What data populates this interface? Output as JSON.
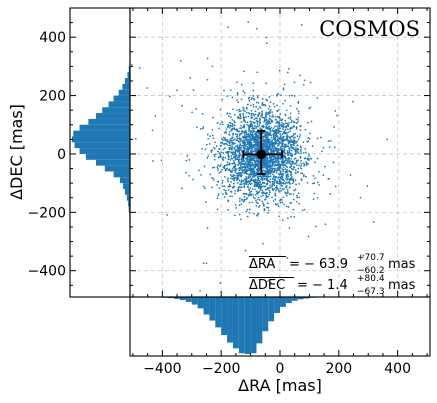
{
  "chart_data": {
    "type": "scatter",
    "title": "COSMOS",
    "xlabel": "ΔRA [mas]",
    "ylabel": "ΔDEC [mas]",
    "xlim": [
      -510,
      510
    ],
    "ylim": [
      -490,
      500
    ],
    "xticks": [
      -400,
      -200,
      0,
      200,
      400
    ],
    "yticks": [
      -400,
      -200,
      0,
      200,
      400
    ],
    "grid": true,
    "color": "#1f77b4",
    "point_color": "#1f77b4",
    "marker_color": "#000000",
    "mean": {
      "ra": -63.9,
      "dec": -1.4
    },
    "errorbar": {
      "ra_minus": 60.2,
      "ra_plus": 70.7,
      "dec_minus": 67.3,
      "dec_plus": 80.4
    },
    "n_points": 3000,
    "annotation_ra": {
      "label": "ΔRA",
      "value": "= − 63.9",
      "sup": "+70.7",
      "sub": "−60.2",
      "unit": "mas"
    },
    "annotation_dec": {
      "label": "ΔDEC",
      "value": "= − 1.4",
      "sup": "+80.4",
      "sub": "−67.3",
      "unit": "mas"
    },
    "hist_ra": {
      "bin_start": -440,
      "bin_width": 20,
      "counts": [
        1,
        1,
        2,
        3,
        5,
        8,
        13,
        20,
        30,
        46,
        62,
        80,
        100,
        120,
        135,
        148,
        150,
        148,
        122,
        90,
        64,
        42,
        26,
        16,
        10,
        6,
        4,
        2,
        1,
        1,
        0,
        0,
        0,
        0,
        0,
        0,
        0,
        0,
        0,
        0,
        0,
        0,
        0,
        0
      ]
    },
    "hist_dec": {
      "bin_start": -240,
      "bin_width": 20,
      "counts": [
        1,
        1,
        2,
        3,
        5,
        8,
        11,
        16,
        26,
        40,
        54,
        70,
        80,
        88,
        92,
        90,
        80,
        66,
        54,
        44,
        34,
        26,
        18,
        12,
        8,
        4,
        2,
        1
      ]
    }
  }
}
